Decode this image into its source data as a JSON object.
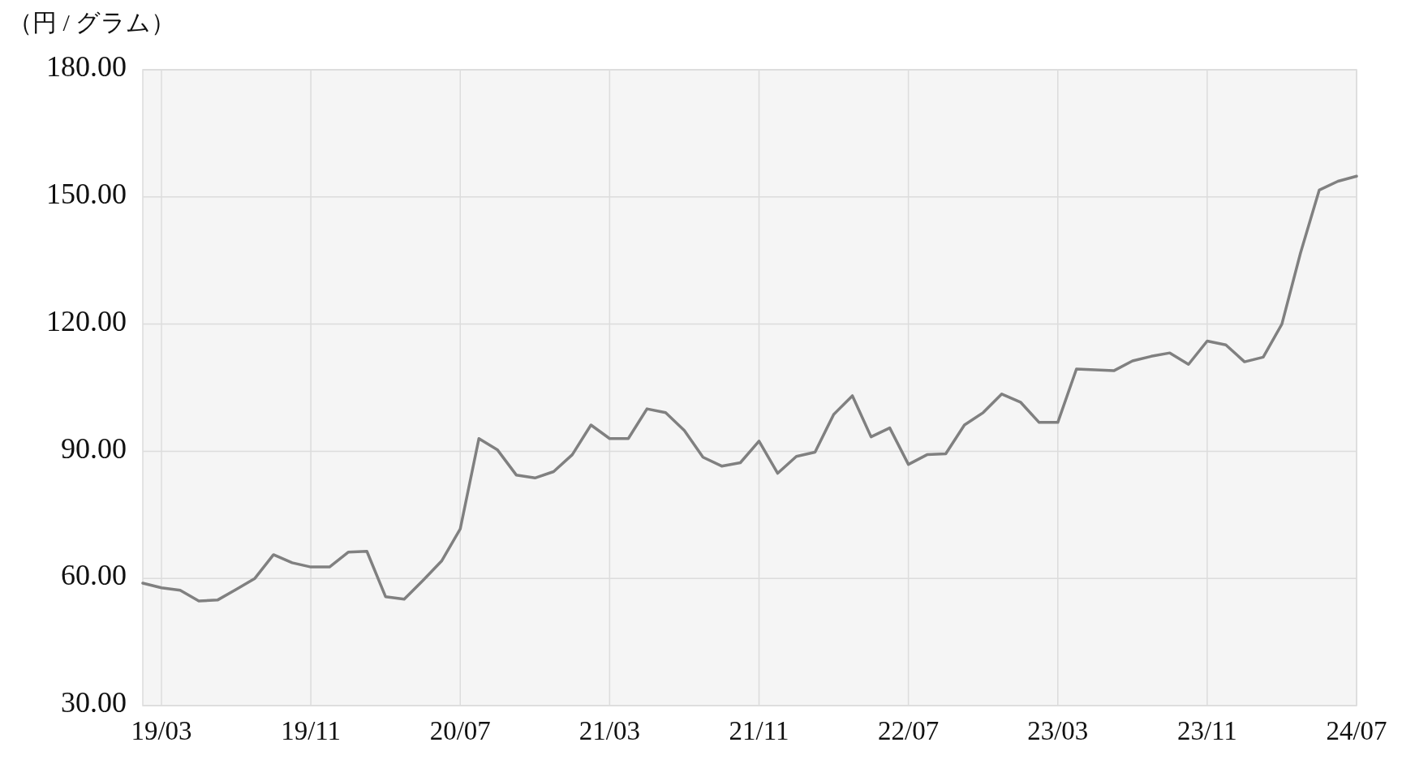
{
  "chart_data": {
    "type": "line",
    "ylabel": "（円 / グラム）",
    "categories": [
      null,
      "19/03",
      null,
      null,
      null,
      null,
      null,
      null,
      null,
      "19/11",
      null,
      null,
      null,
      null,
      null,
      null,
      null,
      "20/07",
      null,
      null,
      null,
      null,
      null,
      null,
      null,
      "21/03",
      null,
      null,
      null,
      null,
      null,
      null,
      null,
      "21/11",
      null,
      null,
      null,
      null,
      null,
      null,
      null,
      "22/07",
      null,
      null,
      null,
      null,
      null,
      null,
      null,
      "23/03",
      null,
      null,
      null,
      null,
      null,
      null,
      null,
      "23/11",
      null,
      null,
      null,
      null,
      null,
      null,
      null,
      "24/07"
    ],
    "series": [
      {
        "color": "#808080",
        "values": [
          58.9,
          57.8,
          57.2,
          54.7,
          54.9,
          57.4,
          60.0,
          65.6,
          63.7,
          62.7,
          62.7,
          66.2,
          66.4,
          55.7,
          55.1,
          59.5,
          64.1,
          71.7,
          93.0,
          90.3,
          84.4,
          83.7,
          85.2,
          89.2,
          96.2,
          93.0,
          93.0,
          100.0,
          99.1,
          94.9,
          88.6,
          86.5,
          87.3,
          92.4,
          84.8,
          88.8,
          89.8,
          98.7,
          103.1,
          93.4,
          95.5,
          86.9,
          89.2,
          89.4,
          96.2,
          99.1,
          103.5,
          101.6,
          96.8,
          96.8,
          109.4,
          109.2,
          109.0,
          111.3,
          112.4,
          113.2,
          110.5,
          116.0,
          115.1,
          111.1,
          112.2,
          120.0,
          136.8,
          151.6,
          153.7,
          154.9
        ]
      }
    ],
    "ylim": [
      30,
      180
    ],
    "yticks": [
      {
        "value": 30,
        "label": "30.00"
      },
      {
        "value": 60,
        "label": "60.00"
      },
      {
        "value": 90,
        "label": "90.00"
      },
      {
        "value": 120,
        "label": "120.00"
      },
      {
        "value": 150,
        "label": "150.00"
      },
      {
        "value": 180,
        "label": "180.00"
      }
    ],
    "grid": true,
    "line_style": "solid",
    "marker": "none"
  }
}
